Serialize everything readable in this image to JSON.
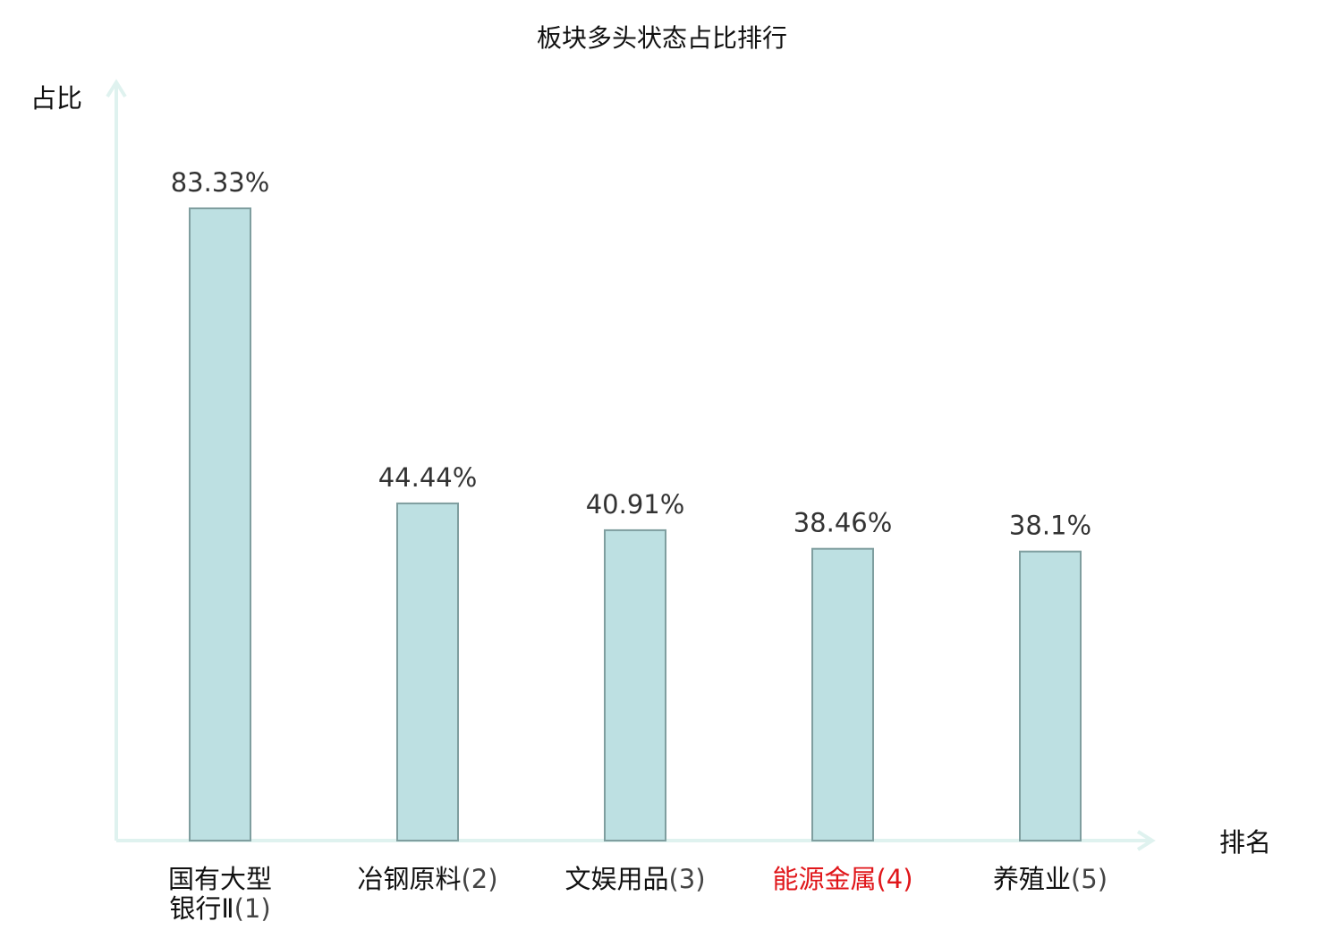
{
  "chart_data": {
    "type": "bar",
    "title": "板块多头状态占比排行",
    "xlabel": "排名",
    "ylabel": "占比",
    "categories": [
      {
        "name": "国有大型银行Ⅱ",
        "rank": "(1)",
        "highlight": false
      },
      {
        "name": "冶钢原料",
        "rank": "(2)",
        "highlight": false
      },
      {
        "name": "文娱用品",
        "rank": "(3)",
        "highlight": false
      },
      {
        "name": "能源金属",
        "rank": "(4)",
        "highlight": true
      },
      {
        "name": "养殖业",
        "rank": "(5)",
        "highlight": false
      }
    ],
    "values": [
      83.33,
      44.44,
      40.91,
      38.46,
      38.1
    ],
    "value_labels": [
      "83.33%",
      "44.44%",
      "40.91%",
      "38.46%",
      "38.1%"
    ],
    "ylim": [
      0,
      83.33
    ],
    "grid": false,
    "colors": {
      "bar_fill": "#bde0e2",
      "bar_stroke": "#7f9e9f",
      "axis": "#dff2ef",
      "highlight_text": "#e0161a",
      "text": "#111111",
      "rank_text": "#444444"
    }
  }
}
